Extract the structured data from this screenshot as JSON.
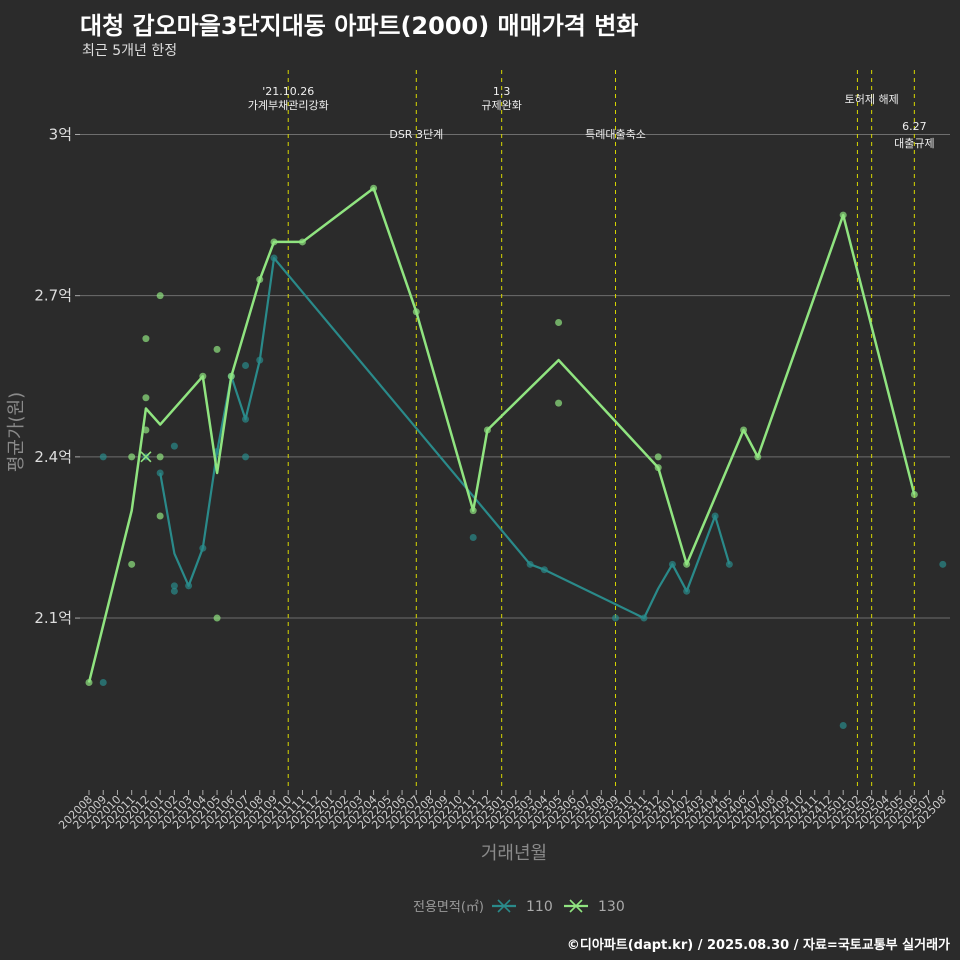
{
  "header": {
    "title": "대청 갑오마을3단지대동 아파트(2000) 매매가격 변화",
    "subtitle": "최근 5개년 한정"
  },
  "footer": {
    "caption": "©디아파트(dapt.kr) / 2025.08.30 / 자료=국토교통부 실거래가"
  },
  "chart_data": {
    "type": "line",
    "title": "대청 갑오마을3단지대동 아파트(2000) 매매가격 변화",
    "subtitle": "최근 5개년 한정",
    "xlabel": "거래년월",
    "ylabel": "평균가(원)",
    "y_unit": "억",
    "ylim": [
      1.78,
      3.12
    ],
    "y_ticks": [
      {
        "value": 2.1,
        "label": "2.1억"
      },
      {
        "value": 2.4,
        "label": "2.4억"
      },
      {
        "value": 2.7,
        "label": "2.7억"
      },
      {
        "value": 3.0,
        "label": "3억"
      }
    ],
    "grid": true,
    "categories": [
      "202008",
      "202009",
      "202010",
      "202011",
      "202012",
      "202101",
      "202102",
      "202103",
      "202104",
      "202105",
      "202106",
      "202107",
      "202108",
      "202109",
      "202110",
      "202111",
      "202112",
      "202201",
      "202202",
      "202203",
      "202204",
      "202205",
      "202206",
      "202207",
      "202208",
      "202209",
      "202210",
      "202211",
      "202212",
      "202301",
      "202302",
      "202303",
      "202304",
      "202305",
      "202306",
      "202307",
      "202308",
      "202309",
      "202310",
      "202311",
      "202312",
      "202401",
      "202402",
      "202403",
      "202404",
      "202405",
      "202406",
      "202407",
      "202408",
      "202409",
      "202410",
      "202411",
      "202412",
      "202501",
      "202502",
      "202503",
      "202504",
      "202505",
      "202506",
      "202507",
      "202508"
    ],
    "legend": {
      "title": "전용면적(㎡)",
      "position": "bottom"
    },
    "series": [
      {
        "name": "110",
        "color": "#2a8a8a",
        "line": [
          {
            "x": "202101",
            "y": 2.37
          },
          {
            "x": "202102",
            "y": 2.22
          },
          {
            "x": "202103",
            "y": 2.16
          },
          {
            "x": "202104",
            "y": 2.23
          },
          {
            "x": "202105",
            "y": 2.41
          },
          {
            "x": "202106",
            "y": 2.55
          },
          {
            "x": "202107",
            "y": 2.47
          },
          {
            "x": "202108",
            "y": 2.58
          },
          {
            "x": "202109",
            "y": 2.77
          },
          {
            "x": "202303",
            "y": 2.2
          },
          {
            "x": "202304",
            "y": 2.19
          },
          {
            "x": "202311",
            "y": 2.1
          },
          {
            "x": "202312",
            "y": 2.155
          },
          {
            "x": "202401",
            "y": 2.2
          },
          {
            "x": "202402",
            "y": 2.15
          },
          {
            "x": "202404",
            "y": 2.29
          },
          {
            "x": "202405",
            "y": 2.2
          }
        ],
        "points": [
          {
            "x": "202009",
            "y": 1.98
          },
          {
            "x": "202009",
            "y": 2.4
          },
          {
            "x": "202012",
            "y": 2.4
          },
          {
            "x": "202101",
            "y": 2.37
          },
          {
            "x": "202102",
            "y": 2.42
          },
          {
            "x": "202102",
            "y": 2.15
          },
          {
            "x": "202102",
            "y": 2.16
          },
          {
            "x": "202103",
            "y": 2.16
          },
          {
            "x": "202104",
            "y": 2.23
          },
          {
            "x": "202105",
            "y": 2.41
          },
          {
            "x": "202106",
            "y": 2.55
          },
          {
            "x": "202107",
            "y": 2.57
          },
          {
            "x": "202107",
            "y": 2.4
          },
          {
            "x": "202107",
            "y": 2.47
          },
          {
            "x": "202108",
            "y": 2.58
          },
          {
            "x": "202109",
            "y": 2.77
          },
          {
            "x": "202211",
            "y": 2.25
          },
          {
            "x": "202303",
            "y": 2.2
          },
          {
            "x": "202304",
            "y": 2.19
          },
          {
            "x": "202309",
            "y": 2.1
          },
          {
            "x": "202311",
            "y": 2.1
          },
          {
            "x": "202401",
            "y": 2.2
          },
          {
            "x": "202402",
            "y": 2.15
          },
          {
            "x": "202404",
            "y": 2.29
          },
          {
            "x": "202405",
            "y": 2.2
          },
          {
            "x": "202501",
            "y": 1.9
          },
          {
            "x": "202508",
            "y": 2.2
          }
        ]
      },
      {
        "name": "130",
        "color": "#90e480",
        "line": [
          {
            "x": "202008",
            "y": 1.98
          },
          {
            "x": "202011",
            "y": 2.3
          },
          {
            "x": "202012",
            "y": 2.49
          },
          {
            "x": "202101",
            "y": 2.46
          },
          {
            "x": "202104",
            "y": 2.55
          },
          {
            "x": "202105",
            "y": 2.37
          },
          {
            "x": "202106",
            "y": 2.55
          },
          {
            "x": "202108",
            "y": 2.73
          },
          {
            "x": "202109",
            "y": 2.8
          },
          {
            "x": "202111",
            "y": 2.8
          },
          {
            "x": "202204",
            "y": 2.9
          },
          {
            "x": "202207",
            "y": 2.67
          },
          {
            "x": "202211",
            "y": 2.3
          },
          {
            "x": "202212",
            "y": 2.45
          },
          {
            "x": "202305",
            "y": 2.58
          },
          {
            "x": "202312",
            "y": 2.38
          },
          {
            "x": "202402",
            "y": 2.2
          },
          {
            "x": "202406",
            "y": 2.45
          },
          {
            "x": "202407",
            "y": 2.4
          },
          {
            "x": "202501",
            "y": 2.85
          },
          {
            "x": "202506",
            "y": 2.33
          }
        ],
        "points": [
          {
            "x": "202008",
            "y": 1.98
          },
          {
            "x": "202011",
            "y": 2.2
          },
          {
            "x": "202011",
            "y": 2.4
          },
          {
            "x": "202012",
            "y": 2.62
          },
          {
            "x": "202012",
            "y": 2.51
          },
          {
            "x": "202012",
            "y": 2.45
          },
          {
            "x": "202101",
            "y": 2.7
          },
          {
            "x": "202101",
            "y": 2.4
          },
          {
            "x": "202101",
            "y": 2.29
          },
          {
            "x": "202104",
            "y": 2.55
          },
          {
            "x": "202105",
            "y": 2.6
          },
          {
            "x": "202105",
            "y": 2.1
          },
          {
            "x": "202106",
            "y": 2.55
          },
          {
            "x": "202108",
            "y": 2.73
          },
          {
            "x": "202109",
            "y": 2.8
          },
          {
            "x": "202111",
            "y": 2.8
          },
          {
            "x": "202204",
            "y": 2.9
          },
          {
            "x": "202207",
            "y": 2.67
          },
          {
            "x": "202211",
            "y": 2.3
          },
          {
            "x": "202212",
            "y": 2.45
          },
          {
            "x": "202305",
            "y": 2.65
          },
          {
            "x": "202305",
            "y": 2.5
          },
          {
            "x": "202312",
            "y": 2.4
          },
          {
            "x": "202312",
            "y": 2.38
          },
          {
            "x": "202402",
            "y": 2.2
          },
          {
            "x": "202406",
            "y": 2.45
          },
          {
            "x": "202407",
            "y": 2.4
          },
          {
            "x": "202501",
            "y": 2.85
          },
          {
            "x": "202506",
            "y": 2.33
          }
        ]
      }
    ],
    "crosses": [
      {
        "series": "130",
        "x": "202012",
        "y": 2.4
      }
    ],
    "events": [
      {
        "x": "202110",
        "lines": [
          "'21.10.26",
          "가계부채관리강화"
        ],
        "row": 1
      },
      {
        "x": "202207",
        "lines": [
          "DSR 3단계"
        ],
        "row": 2
      },
      {
        "x": "202301",
        "lines": [
          "1.3",
          "규제완화"
        ],
        "row": 0
      },
      {
        "x": "202309",
        "lines": [
          "특례대출축소"
        ],
        "row": 2
      },
      {
        "x": "202502",
        "lines": [],
        "row": 1
      },
      {
        "x": "202503",
        "lines": [
          "토허제 해제"
        ],
        "row": 1
      },
      {
        "x": "202506",
        "lines": [
          "6.27",
          "대출규제"
        ],
        "row": 3
      }
    ]
  }
}
